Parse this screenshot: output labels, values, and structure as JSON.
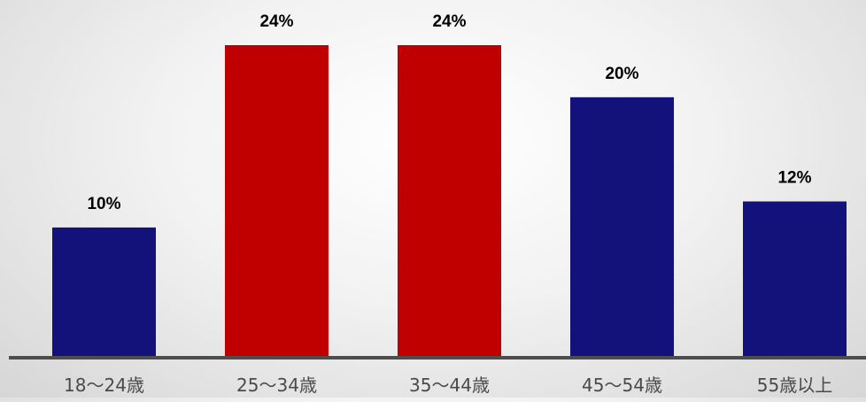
{
  "chart_data": {
    "type": "bar",
    "categories": [
      "18〜24歳",
      "25〜34歳",
      "35〜44歳",
      "45〜54歳",
      "55歳以上"
    ],
    "values": [
      10,
      24,
      24,
      20,
      12
    ],
    "value_labels": [
      "10%",
      "24%",
      "24%",
      "20%",
      "12%"
    ],
    "ylim": [
      0,
      24
    ],
    "grid": false,
    "legend": "none",
    "colors": {
      "default": "#12127a",
      "highlight": "#c00000",
      "axis": "#4d4d4d"
    },
    "highlighted": [
      false,
      true,
      true,
      false,
      false
    ]
  }
}
